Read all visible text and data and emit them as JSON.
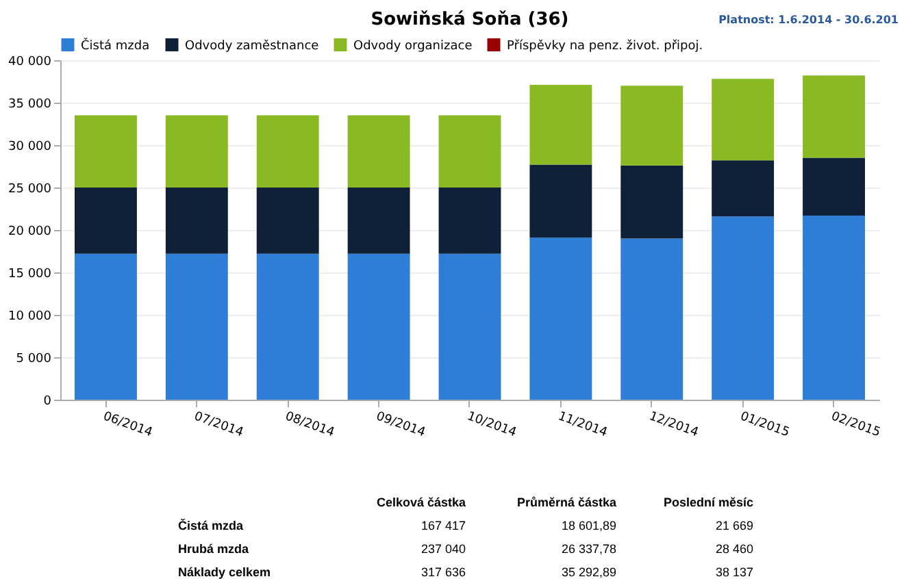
{
  "chart_data": {
    "type": "bar",
    "title": "Sowiňská Soňa (36)",
    "stacked": true,
    "categories": [
      "06/2014",
      "07/2014",
      "08/2014",
      "09/2014",
      "10/2014",
      "11/2014",
      "12/2014",
      "01/2015",
      "02/2015"
    ],
    "series": [
      {
        "name": "Čistá mzda",
        "color": "#2e7dd7",
        "values": [
          17200,
          17200,
          17200,
          17200,
          17200,
          19100,
          19000,
          21600,
          21700
        ]
      },
      {
        "name": "Odvody zaměstnance",
        "color": "#0e2139",
        "values": [
          7800,
          7800,
          7800,
          7800,
          7800,
          8600,
          8600,
          6600,
          6800
        ]
      },
      {
        "name": "Odvody organizace",
        "color": "#8aba23",
        "values": [
          8500,
          8500,
          8500,
          8500,
          8500,
          9400,
          9400,
          9600,
          9700
        ]
      },
      {
        "name": "Příspěvky na penz. život. připoj.",
        "color": "#990000",
        "values": [
          null,
          null,
          null,
          null,
          null,
          null,
          null,
          null,
          null
        ]
      }
    ],
    "ylim": [
      0,
      40000
    ],
    "yticks": [
      0,
      {
        "value": 5000,
        "label": "5 000"
      },
      {
        "value": 10000,
        "label": "10 000"
      },
      {
        "value": 15000,
        "label": "15 000"
      },
      {
        "value": 20000,
        "label": "20 000"
      },
      {
        "value": 25000,
        "label": "25 000"
      },
      {
        "value": 30000,
        "label": "30 000"
      },
      {
        "value": 35000,
        "label": "35 000"
      },
      {
        "value": 40000,
        "label": "40 000"
      }
    ],
    "grid": "y",
    "legend": "top",
    "annotations": [
      "Platnost: 1.6.2014 - 30.6.201",
      "Celková částka",
      "Průměrná částka",
      "Poslední měsíc",
      "Čistá mzda",
      "167 417",
      "18 601,89",
      "21 669",
      "Hrubá mzda",
      "237 040",
      "26 337,78",
      "28 460",
      "Náklady celkem",
      "317 636",
      "35 292,89",
      "38 137"
    ]
  }
}
